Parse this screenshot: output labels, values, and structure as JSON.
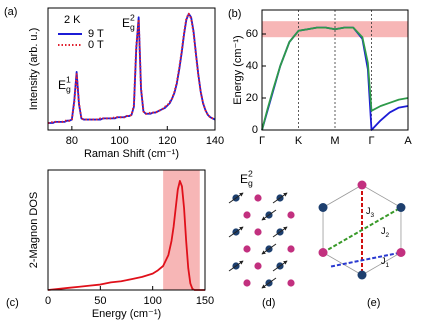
{
  "chart_data": [
    {
      "type": "line",
      "panel_label": "(a)",
      "xlabel": "Raman Shift (cm⁻¹)",
      "ylabel": "Intensity (arb. u.)",
      "xlim": [
        70,
        140
      ],
      "xticks": [
        80,
        100,
        120,
        140
      ],
      "ylim": [
        0,
        1.05
      ],
      "legend": "upper left",
      "legend_title": "2 K",
      "x": [
        70,
        71,
        72,
        73,
        74,
        75,
        76,
        77,
        78,
        79,
        80,
        81,
        82,
        83,
        84,
        85,
        86,
        87,
        88,
        89,
        90,
        91,
        92,
        93,
        94,
        95,
        96,
        97,
        98,
        99,
        100,
        101,
        102,
        103,
        104,
        105,
        106,
        107,
        108,
        109,
        110,
        111,
        112,
        113,
        114,
        115,
        116,
        117,
        118,
        119,
        120,
        121,
        122,
        123,
        124,
        125,
        126,
        127,
        128,
        129,
        130,
        131,
        132,
        133,
        134,
        135,
        136,
        137,
        138,
        139,
        140
      ],
      "series": [
        {
          "name": "9 T",
          "color": "#1c1cd6",
          "dash": "solid",
          "values": [
            0.06,
            0.06,
            0.06,
            0.07,
            0.07,
            0.07,
            0.07,
            0.07,
            0.08,
            0.08,
            0.09,
            0.25,
            0.5,
            0.22,
            0.1,
            0.09,
            0.09,
            0.09,
            0.09,
            0.09,
            0.09,
            0.09,
            0.09,
            0.1,
            0.1,
            0.1,
            0.1,
            0.1,
            0.1,
            0.11,
            0.11,
            0.11,
            0.11,
            0.12,
            0.12,
            0.13,
            0.2,
            0.7,
            0.97,
            0.35,
            0.16,
            0.14,
            0.14,
            0.14,
            0.15,
            0.15,
            0.16,
            0.17,
            0.18,
            0.19,
            0.21,
            0.23,
            0.27,
            0.32,
            0.4,
            0.52,
            0.66,
            0.82,
            0.95,
            1.0,
            0.97,
            0.85,
            0.66,
            0.48,
            0.33,
            0.23,
            0.17,
            0.13,
            0.11,
            0.1,
            0.09
          ]
        },
        {
          "name": "0 T",
          "color": "#e0202f",
          "dash": "dotted",
          "values": [
            0.06,
            0.06,
            0.07,
            0.07,
            0.07,
            0.07,
            0.07,
            0.08,
            0.08,
            0.08,
            0.09,
            0.24,
            0.48,
            0.23,
            0.1,
            0.09,
            0.09,
            0.09,
            0.09,
            0.09,
            0.09,
            0.09,
            0.1,
            0.1,
            0.1,
            0.1,
            0.1,
            0.1,
            0.11,
            0.11,
            0.11,
            0.11,
            0.11,
            0.12,
            0.12,
            0.13,
            0.21,
            0.72,
            0.95,
            0.36,
            0.16,
            0.14,
            0.14,
            0.15,
            0.15,
            0.15,
            0.16,
            0.17,
            0.18,
            0.2,
            0.21,
            0.24,
            0.27,
            0.33,
            0.41,
            0.53,
            0.67,
            0.83,
            0.96,
            1.0,
            0.96,
            0.84,
            0.65,
            0.47,
            0.33,
            0.23,
            0.17,
            0.13,
            0.11,
            0.1,
            0.09
          ]
        }
      ],
      "annotations": [
        {
          "symbol": "E",
          "sub": "g",
          "sup": "1"
        },
        {
          "symbol": "E",
          "sub": "g",
          "sup": "2"
        }
      ]
    },
    {
      "type": "line",
      "panel_label": "(b)",
      "ylabel": "Energy (cm⁻¹)",
      "xlim": [
        0,
        4
      ],
      "xticks": [
        {
          "value": 0,
          "label": "Γ"
        },
        {
          "value": 1,
          "label": "K"
        },
        {
          "value": 2,
          "label": "M"
        },
        {
          "value": 3,
          "label": "Γ"
        },
        {
          "value": 4,
          "label": "A"
        }
      ],
      "grid": true,
      "ylim": [
        0,
        75
      ],
      "yticks": [
        0,
        20,
        40,
        60
      ],
      "yband": {
        "range": [
          58,
          68
        ],
        "color": "#f7b6b6"
      },
      "x": [
        0,
        0.15,
        0.3,
        0.5,
        0.75,
        1,
        1.25,
        1.5,
        1.75,
        2,
        2.25,
        2.5,
        2.75,
        2.9,
        3,
        3.25,
        3.5,
        3.75,
        4
      ],
      "series": [
        {
          "color": "#1c1cd6",
          "values": [
            0,
            12,
            24,
            40,
            55,
            62,
            63,
            64,
            64,
            63,
            64,
            64,
            57,
            38,
            0,
            6,
            11,
            14,
            15
          ]
        },
        {
          "color": "#2e9a4a",
          "values": [
            0,
            13,
            25,
            40,
            55,
            62,
            63,
            64,
            64,
            63,
            64,
            64,
            58,
            42,
            12,
            15,
            17,
            19,
            20
          ]
        }
      ]
    },
    {
      "type": "line",
      "panel_label": "(c)",
      "xlabel": "Energy (cm⁻¹)",
      "ylabel": "2-Magnon DOS",
      "xlim": [
        0,
        150
      ],
      "xticks": [
        0,
        50,
        100,
        150
      ],
      "ylim": [
        0,
        1.1
      ],
      "xband": {
        "range": [
          110,
          145
        ],
        "color": "#f7b6b6"
      },
      "x": [
        0,
        10,
        20,
        30,
        40,
        50,
        60,
        70,
        80,
        90,
        100,
        105,
        110,
        115,
        118,
        120,
        122,
        124,
        126,
        128,
        130,
        132,
        134,
        136,
        138,
        140,
        145,
        150
      ],
      "series": [
        {
          "color": "#e0101a",
          "values": [
            0,
            0.01,
            0.02,
            0.03,
            0.04,
            0.05,
            0.07,
            0.08,
            0.1,
            0.12,
            0.15,
            0.18,
            0.22,
            0.32,
            0.45,
            0.58,
            0.75,
            0.92,
            1.0,
            0.95,
            0.75,
            0.45,
            0.2,
            0.06,
            0.01,
            0,
            0,
            0
          ]
        }
      ]
    }
  ],
  "lattice": {
    "panel_label": "(d)",
    "mode": {
      "symbol": "E",
      "sub": "g",
      "sup": "2"
    }
  },
  "exchange": {
    "panel_label": "(e)",
    "couplings": [
      {
        "symbol": "J",
        "sub": "1"
      },
      {
        "symbol": "J",
        "sub": "2"
      },
      {
        "symbol": "J",
        "sub": "3"
      }
    ]
  }
}
